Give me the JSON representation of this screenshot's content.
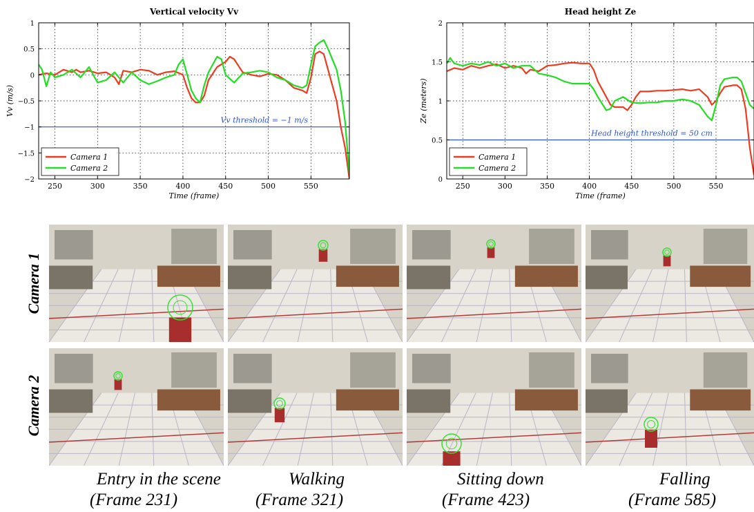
{
  "chart_data": [
    {
      "type": "line",
      "title": "Vertical velocity Vv",
      "xlabel": "Time (frame)",
      "ylabel": "Vv (m/s)",
      "xlim": [
        231,
        595
      ],
      "ylim": [
        -2,
        1
      ],
      "xticks": [
        250,
        300,
        350,
        400,
        450,
        500,
        550
      ],
      "yticks": [
        -2,
        -1.5,
        -1,
        -0.5,
        0,
        0.5,
        1
      ],
      "ytick_labels": [
        "−2",
        "−1.5",
        "−1",
        "−0.5",
        "0",
        "0.5",
        "1"
      ],
      "grid": true,
      "legend_position": "bottom-left",
      "threshold": {
        "value": -1,
        "label": "Vv threshold = −1 m/s",
        "color": "#2b55e0"
      },
      "series": [
        {
          "name": "Camera 1",
          "color": "#ee3b1f",
          "x": [
            231,
            240,
            250,
            260,
            270,
            275,
            280,
            290,
            300,
            310,
            320,
            325,
            330,
            340,
            350,
            360,
            370,
            380,
            390,
            400,
            405,
            410,
            415,
            420,
            425,
            430,
            440,
            450,
            455,
            460,
            470,
            480,
            490,
            500,
            510,
            520,
            530,
            540,
            545,
            550,
            555,
            560,
            565,
            570,
            575,
            580,
            585,
            590,
            595
          ],
          "y": [
            0,
            0.03,
            0,
            0.1,
            0.05,
            0.1,
            0.05,
            0.08,
            0.03,
            0.05,
            -0.05,
            -0.18,
            0.08,
            0.05,
            0.1,
            0.08,
            0,
            0.05,
            0.07,
            0,
            -0.25,
            -0.45,
            -0.53,
            -0.53,
            -0.4,
            -0.1,
            0.15,
            0.25,
            0.35,
            0.3,
            0.05,
            0,
            -0.03,
            0.02,
            0,
            -0.1,
            -0.25,
            -0.3,
            -0.35,
            -0.05,
            0.4,
            0.45,
            0.4,
            0.1,
            -0.2,
            -0.5,
            -1,
            -1.4,
            -2
          ]
        },
        {
          "name": "Camera 2",
          "color": "#22dd22",
          "x": [
            231,
            235,
            240,
            245,
            250,
            260,
            270,
            280,
            290,
            300,
            310,
            320,
            330,
            340,
            350,
            360,
            370,
            380,
            390,
            395,
            400,
            405,
            410,
            415,
            420,
            425,
            430,
            440,
            445,
            450,
            460,
            470,
            480,
            490,
            500,
            510,
            520,
            530,
            540,
            545,
            550,
            555,
            560,
            565,
            570,
            575,
            580,
            585,
            590,
            595
          ],
          "y": [
            0.2,
            0.1,
            -0.22,
            0.05,
            -0.05,
            0,
            0.1,
            -0.05,
            0.15,
            -0.15,
            -0.1,
            0.05,
            -0.15,
            0.05,
            -0.1,
            -0.18,
            -0.12,
            -0.05,
            0,
            0.2,
            0.3,
            0,
            -0.3,
            -0.45,
            -0.53,
            -0.2,
            0.05,
            0.35,
            0.3,
            0,
            -0.15,
            0.03,
            0.05,
            0.08,
            0.05,
            -0.05,
            -0.1,
            -0.2,
            -0.25,
            -0.2,
            0.2,
            0.55,
            0.62,
            0.67,
            0.5,
            0.3,
            0.1,
            -0.3,
            -0.9,
            -1.9
          ]
        }
      ]
    },
    {
      "type": "line",
      "title": "Head height Ze",
      "xlabel": "Time (frame)",
      "ylabel": "Ze (meters)",
      "xlim": [
        231,
        595
      ],
      "ylim": [
        0,
        2
      ],
      "xticks": [
        250,
        300,
        350,
        400,
        450,
        500,
        550
      ],
      "yticks": [
        0,
        0.5,
        1,
        1.5,
        2
      ],
      "ytick_labels": [
        "0",
        "0.5",
        "1",
        "1.5",
        "2"
      ],
      "grid": true,
      "legend_position": "bottom-left",
      "threshold": {
        "value": 0.5,
        "label": "Head height threshold = 50 cm",
        "color": "#2b55e0"
      },
      "series": [
        {
          "name": "Camera 1",
          "color": "#ee3b1f",
          "x": [
            231,
            240,
            250,
            260,
            270,
            280,
            290,
            300,
            310,
            320,
            325,
            330,
            340,
            350,
            360,
            370,
            380,
            390,
            400,
            405,
            410,
            420,
            425,
            430,
            440,
            445,
            450,
            455,
            460,
            470,
            480,
            490,
            500,
            510,
            520,
            530,
            540,
            545,
            550,
            555,
            560,
            570,
            575,
            580,
            585,
            590,
            595
          ],
          "y": [
            1.38,
            1.42,
            1.4,
            1.45,
            1.42,
            1.45,
            1.47,
            1.42,
            1.45,
            1.42,
            1.35,
            1.4,
            1.38,
            1.45,
            1.46,
            1.48,
            1.49,
            1.48,
            1.48,
            1.4,
            1.25,
            1.05,
            0.95,
            0.92,
            0.92,
            0.88,
            0.95,
            1.05,
            1.12,
            1.12,
            1.13,
            1.13,
            1.14,
            1.15,
            1.13,
            1.15,
            1.05,
            0.95,
            1.0,
            1.1,
            1.18,
            1.2,
            1.2,
            1.15,
            0.9,
            0.4,
            0.05
          ]
        },
        {
          "name": "Camera 2",
          "color": "#22dd22",
          "x": [
            231,
            235,
            240,
            250,
            260,
            270,
            280,
            290,
            300,
            310,
            320,
            330,
            340,
            350,
            360,
            370,
            380,
            390,
            400,
            405,
            410,
            420,
            425,
            430,
            440,
            450,
            460,
            470,
            480,
            490,
            500,
            510,
            520,
            530,
            540,
            545,
            550,
            555,
            560,
            570,
            575,
            580,
            585,
            590,
            595
          ],
          "y": [
            1.48,
            1.55,
            1.48,
            1.45,
            1.48,
            1.46,
            1.5,
            1.45,
            1.48,
            1.42,
            1.45,
            1.45,
            1.35,
            1.33,
            1.3,
            1.25,
            1.22,
            1.22,
            1.22,
            1.15,
            1.05,
            0.88,
            0.9,
            1.0,
            1.05,
            0.98,
            0.97,
            0.98,
            0.98,
            1.0,
            1.0,
            1.02,
            1.0,
            0.95,
            0.8,
            0.75,
            0.95,
            1.2,
            1.28,
            1.3,
            1.3,
            1.25,
            1.1,
            0.95,
            0.9
          ]
        }
      ]
    }
  ],
  "photo_rows": [
    {
      "label": "Camera 1"
    },
    {
      "label": "Camera 2"
    }
  ],
  "captions": [
    {
      "line1": "Entry in the scene",
      "line2": "(Frame 231)"
    },
    {
      "line1": "Walking",
      "line2": "(Frame 321)"
    },
    {
      "line1": "Sitting down",
      "line2": "(Frame 423)"
    },
    {
      "line1": "Falling",
      "line2": "(Frame 585)"
    }
  ]
}
